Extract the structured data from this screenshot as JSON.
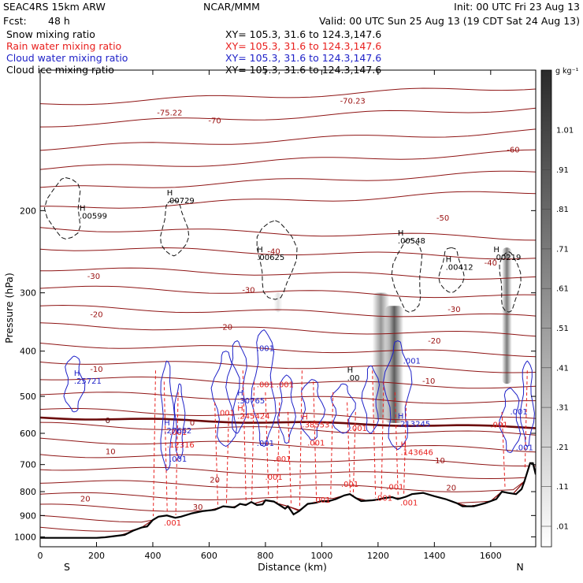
{
  "header": {
    "model": "SEAC4RS 15km ARW",
    "center": "NCAR/MMM",
    "init": "Init: 00 UTC Fri 23 Aug 13",
    "fcst_label": "Fcst:",
    "fcst_value": "48 h",
    "valid": "Valid: 00 UTC Sun 25 Aug 13 (19 CDT Sat 24 Aug 13)",
    "fields": [
      {
        "name": "Snow mixing ratio",
        "xy": "XY= 105.3, 31.6 to 124.3,147.6",
        "color": "#000000"
      },
      {
        "name": "Rain water mixing ratio",
        "xy": "XY= 105.3, 31.6 to 124.3,147.6",
        "color": "#e8201e"
      },
      {
        "name": "Cloud water mixing ratio",
        "xy": "XY= 105.3, 31.6 to 124.3,147.6",
        "color": "#1f22c8"
      },
      {
        "name": "Cloud ice mixing ratio",
        "xy": "XY= 105.3, 31.6 to 124.3,147.6",
        "color": "#000000"
      }
    ]
  },
  "chart_data": {
    "type": "cross-section",
    "xlabel": "Distance (km)",
    "ylabel": "Pressure (hPa)",
    "xlim": [
      0,
      1760
    ],
    "ylim": [
      1050,
      100
    ],
    "y_scale": "log",
    "x_ticks": [
      0,
      200,
      400,
      600,
      800,
      1000,
      1200,
      1400,
      1600
    ],
    "y_ticks": [
      200,
      300,
      400,
      500,
      600,
      700,
      800,
      900,
      1000
    ],
    "endpoints": {
      "left": "S",
      "right": "N"
    },
    "colorbar": {
      "unit": "g kg⁻¹",
      "labels": [
        "1.01",
        ".91",
        ".81",
        ".71",
        ".61",
        ".51",
        ".41",
        ".31",
        ".21",
        ".11",
        ".01"
      ]
    },
    "temperature_contour_labels": [
      {
        "value": "-75.22",
        "x": 460,
        "p": 125,
        "color": "#9a1010"
      },
      {
        "value": "-70",
        "x": 620,
        "p": 130,
        "color": "#9a1010"
      },
      {
        "value": "-70.23",
        "x": 1110,
        "p": 118,
        "color": "#9a1010"
      },
      {
        "value": "-60",
        "x": 1680,
        "p": 150,
        "color": "#9a1010"
      },
      {
        "value": "-50",
        "x": 1430,
        "p": 210,
        "color": "#9a1010"
      },
      {
        "value": "-40",
        "x": 1600,
        "p": 262,
        "color": "#9a1010"
      },
      {
        "value": "-40",
        "x": 830,
        "p": 248,
        "color": "#9a1010"
      },
      {
        "value": "-30",
        "x": 190,
        "p": 280,
        "color": "#9a1010"
      },
      {
        "value": "-30",
        "x": 740,
        "p": 300,
        "color": "#9a1010"
      },
      {
        "value": "-30",
        "x": 1470,
        "p": 330,
        "color": "#9a1010"
      },
      {
        "value": "-20",
        "x": 200,
        "p": 338,
        "color": "#9a1010"
      },
      {
        "value": "-20",
        "x": 660,
        "p": 360,
        "color": "#9a1010"
      },
      {
        "value": "-20",
        "x": 1400,
        "p": 385,
        "color": "#9a1010"
      },
      {
        "value": "-10",
        "x": 200,
        "p": 443,
        "color": "#9a1010"
      },
      {
        "value": "-10",
        "x": 1380,
        "p": 470,
        "color": "#9a1010"
      },
      {
        "value": "0",
        "x": 240,
        "p": 570,
        "color": "#5a0808"
      },
      {
        "value": "0",
        "x": 540,
        "p": 577,
        "color": "#9a1010"
      },
      {
        "value": "10",
        "x": 250,
        "p": 665,
        "color": "#9a1010"
      },
      {
        "value": "10",
        "x": 1420,
        "p": 695,
        "color": "#9a1010"
      },
      {
        "value": "20",
        "x": 620,
        "p": 765,
        "color": "#9a1010"
      },
      {
        "value": "20",
        "x": 1460,
        "p": 795,
        "color": "#9a1010"
      },
      {
        "value": "20",
        "x": 160,
        "p": 840,
        "color": "#9a1010"
      },
      {
        "value": "30",
        "x": 560,
        "p": 875,
        "color": "#9a1010"
      }
    ],
    "high_markers": [
      {
        "label": "H",
        "value": ".00599",
        "x": 140,
        "p": 208,
        "color": "#000000"
      },
      {
        "label": "H",
        "value": ".00729",
        "x": 450,
        "p": 193,
        "color": "#000000"
      },
      {
        "label": "H",
        "value": ".00625",
        "x": 770,
        "p": 255,
        "color": "#000000"
      },
      {
        "label": "H",
        "value": ".00548",
        "x": 1270,
        "p": 235,
        "color": "#000000"
      },
      {
        "label": "H",
        "value": ".00412",
        "x": 1440,
        "p": 268,
        "color": "#000000"
      },
      {
        "label": "H",
        "value": ".00219",
        "x": 1610,
        "p": 255,
        "color": "#000000"
      },
      {
        "label": "H",
        "value": ".25721",
        "x": 120,
        "p": 470,
        "color": "#1f22c8"
      },
      {
        "label": "H",
        "value": ".30765",
        "x": 700,
        "p": 518,
        "color": "#1f22c8"
      },
      {
        "label": "H",
        "value": ".27662",
        "x": 440,
        "p": 600,
        "color": "#1f22c8"
      },
      {
        "label": "H",
        "value": ".213245",
        "x": 1270,
        "p": 580,
        "color": "#1f22c8"
      },
      {
        "label": "H",
        "value": ".00",
        "x": 1090,
        "p": 462,
        "color": "#000000"
      },
      {
        "label": "H",
        "value": ".245424",
        "x": 700,
        "p": 558,
        "color": "#e8201e"
      },
      {
        "label": "H",
        "value": ".38553",
        "x": 930,
        "p": 583,
        "color": "#e8201e"
      },
      {
        "label": "H",
        "value": ".143646",
        "x": 1280,
        "p": 668,
        "color": "#e8201e"
      },
      {
        "label": "",
        "value": ".12316",
        "x": 450,
        "p": 643,
        "color": "#e8201e"
      }
    ],
    "mixing_ratio_labels": [
      {
        "value": ".001",
        "x": 800,
        "p": 400,
        "color": "#1f22c8"
      },
      {
        "value": ".001",
        "x": 1320,
        "p": 425,
        "color": "#1f22c8"
      },
      {
        "value": ".001",
        "x": 800,
        "p": 478,
        "color": "#e8201e"
      },
      {
        "value": ".001",
        "x": 870,
        "p": 478,
        "color": "#e8201e"
      },
      {
        "value": ".001",
        "x": 660,
        "p": 550,
        "color": "#e8201e"
      },
      {
        "value": ".001",
        "x": 1130,
        "p": 593,
        "color": "#e8201e"
      },
      {
        "value": ".001",
        "x": 980,
        "p": 637,
        "color": "#e8201e"
      },
      {
        "value": ".001",
        "x": 800,
        "p": 638,
        "color": "#1f22c8"
      },
      {
        "value": ".001",
        "x": 490,
        "p": 605,
        "color": "#e8201e"
      },
      {
        "value": ".001",
        "x": 490,
        "p": 690,
        "color": "#1f22c8"
      },
      {
        "value": ".001",
        "x": 860,
        "p": 690,
        "color": "#e8201e"
      },
      {
        "value": ".001",
        "x": 830,
        "p": 755,
        "color": "#e8201e"
      },
      {
        "value": ".001",
        "x": 1100,
        "p": 782,
        "color": "#e8201e"
      },
      {
        "value": ".001",
        "x": 1260,
        "p": 792,
        "color": "#e8201e"
      },
      {
        "value": ".001",
        "x": 1000,
        "p": 845,
        "color": "#e8201e"
      },
      {
        "value": ".001",
        "x": 1310,
        "p": 857,
        "color": "#e8201e"
      },
      {
        "value": ".001",
        "x": 1220,
        "p": 837,
        "color": "#e8201e"
      },
      {
        "value": ".001",
        "x": 470,
        "p": 945,
        "color": "#e8201e"
      },
      {
        "value": ".001",
        "x": 1630,
        "p": 583,
        "color": "#e8201e"
      },
      {
        "value": ".001",
        "x": 1700,
        "p": 547,
        "color": "#1f22c8"
      },
      {
        "value": ".001",
        "x": 1720,
        "p": 652,
        "color": "#1f22c8"
      }
    ],
    "terrain": {
      "x": [
        0,
        100,
        200,
        230,
        300,
        330,
        360,
        380,
        400,
        420,
        450,
        480,
        500,
        540,
        580,
        620,
        650,
        690,
        710,
        730,
        750,
        770,
        790,
        800,
        830,
        850,
        870,
        880,
        900,
        920,
        950,
        980,
        1000,
        1020,
        1050,
        1080,
        1100,
        1120,
        1140,
        1180,
        1200,
        1220,
        1250,
        1270,
        1300,
        1320,
        1360,
        1400,
        1440,
        1480,
        1500,
        1540,
        1580,
        1620,
        1640,
        1660,
        1690,
        1710,
        1720,
        1740,
        1750,
        1760
      ],
      "p": [
        1005,
        1005,
        1005,
        1002,
        990,
        970,
        955,
        950,
        920,
        905,
        900,
        910,
        905,
        890,
        880,
        875,
        860,
        865,
        850,
        855,
        842,
        855,
        852,
        835,
        840,
        855,
        870,
        860,
        895,
        880,
        850,
        845,
        838,
        840,
        830,
        815,
        810,
        825,
        838,
        835,
        832,
        826,
        822,
        830,
        820,
        810,
        805,
        818,
        830,
        847,
        860,
        860,
        847,
        830,
        800,
        805,
        810,
        790,
        760,
        695,
        695,
        735
      ],
      "fill_pressure": [
        1005
      ]
    }
  }
}
